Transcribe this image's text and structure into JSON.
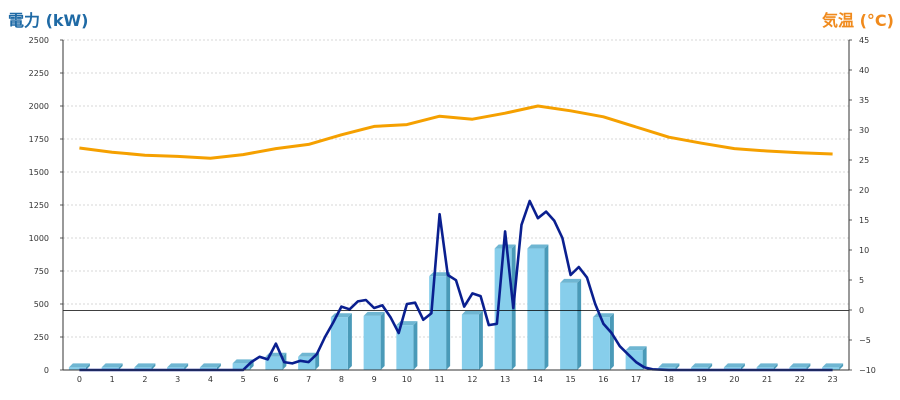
{
  "titles": {
    "left": "電力 (kW)",
    "right": "気温 (°C)"
  },
  "colors": {
    "left_title": "#1f6aa5",
    "right_title": "#f08a1c",
    "bar_front": "#87ceeb",
    "bar_side": "#4a9ab8",
    "bar_top": "#6fb6d2",
    "power_line": "#0a1f8f",
    "temp_line": "#f5a000",
    "grid": "#b0b0b0"
  },
  "chart_data": {
    "type": "bar",
    "categories": [
      "0",
      "1",
      "2",
      "3",
      "4",
      "5",
      "6",
      "7",
      "8",
      "9",
      "10",
      "11",
      "12",
      "13",
      "14",
      "15",
      "16",
      "17",
      "18",
      "19",
      "20",
      "21",
      "22",
      "23"
    ],
    "left_axis": {
      "ylim": [
        0,
        2500
      ],
      "ticks": [
        "0",
        "250",
        "500",
        "750",
        "1000",
        "1250",
        "1500",
        "1750",
        "2000",
        "2250",
        "2500"
      ],
      "reference_line": 450
    },
    "right_axis": {
      "ylim": [
        -10,
        45
      ],
      "ticks": [
        "−10",
        "−5",
        "0",
        "5",
        "10",
        "15",
        "20",
        "25",
        "30",
        "35",
        "40",
        "45"
      ]
    },
    "grid": true,
    "series": [
      {
        "type": "bar",
        "axis": "left",
        "values": [
          20,
          20,
          20,
          20,
          20,
          50,
          100,
          100,
          400,
          410,
          340,
          710,
          420,
          920,
          920,
          660,
          400,
          150,
          20,
          20,
          20,
          20,
          20,
          20
        ]
      },
      {
        "type": "line",
        "axis": "left",
        "x": [
          0,
          0.5,
          1,
          1.5,
          2,
          2.5,
          3,
          3.5,
          4,
          4.5,
          5,
          5.25,
          5.5,
          5.75,
          6,
          6.25,
          6.5,
          6.75,
          7,
          7.25,
          7.5,
          7.75,
          8,
          8.25,
          8.5,
          8.75,
          9,
          9.25,
          9.5,
          9.75,
          10,
          10.25,
          10.5,
          10.75,
          11,
          11.25,
          11.5,
          11.75,
          12,
          12.25,
          12.5,
          12.75,
          13,
          13.25,
          13.5,
          13.75,
          14,
          14.25,
          14.5,
          14.75,
          15,
          15.25,
          15.5,
          15.75,
          16,
          16.25,
          16.5,
          16.75,
          17,
          17.25,
          17.5,
          18,
          18.5,
          19,
          20,
          21,
          22,
          23
        ],
        "values": [
          0,
          0,
          0,
          0,
          0,
          0,
          0,
          0,
          0,
          0,
          0,
          60,
          100,
          80,
          200,
          60,
          50,
          70,
          60,
          120,
          250,
          360,
          480,
          460,
          520,
          530,
          470,
          490,
          400,
          280,
          500,
          510,
          380,
          430,
          1180,
          720,
          680,
          480,
          580,
          560,
          340,
          350,
          1050,
          470,
          1100,
          1280,
          1150,
          1200,
          1130,
          1000,
          720,
          780,
          700,
          500,
          350,
          280,
          180,
          120,
          60,
          20,
          5,
          0,
          0,
          0,
          0,
          0,
          0,
          0
        ]
      },
      {
        "type": "line",
        "axis": "right",
        "x": [
          0,
          1,
          2,
          3,
          4,
          5,
          6,
          7,
          8,
          9,
          10,
          11,
          12,
          13,
          14,
          15,
          16,
          17,
          18,
          19,
          20,
          21,
          22,
          23
        ],
        "values": [
          27,
          26.3,
          25.8,
          25.6,
          25.3,
          25.9,
          26.9,
          27.6,
          29.2,
          30.6,
          30.9,
          32.3,
          31.8,
          32.8,
          34,
          33.2,
          32.2,
          30.5,
          28.8,
          27.8,
          26.9,
          26.5,
          26.2,
          26
        ]
      }
    ]
  }
}
